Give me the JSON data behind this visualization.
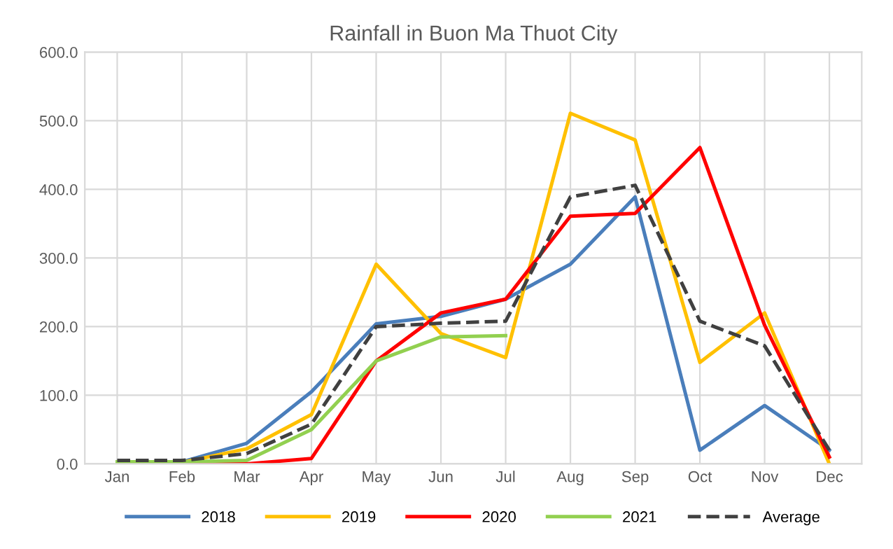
{
  "chart_data": {
    "type": "line",
    "title": "Rainfall in Buon Ma Thuot City",
    "categories": [
      "Jan",
      "Feb",
      "Mar",
      "Apr",
      "May",
      "Jun",
      "Jul",
      "Aug",
      "Sep",
      "Oct",
      "Nov",
      "Dec"
    ],
    "series": [
      {
        "name": "2018",
        "color": "#4a7ebb",
        "values": [
          3,
          3,
          30,
          105,
          204,
          215,
          240,
          291,
          389,
          20,
          85,
          20
        ]
      },
      {
        "name": "2019",
        "color": "#ffc000",
        "values": [
          2,
          2,
          22,
          72,
          291,
          190,
          155,
          511,
          472,
          148,
          220,
          0
        ]
      },
      {
        "name": "2020",
        "color": "#ff0000",
        "values": [
          0,
          0,
          0,
          8,
          150,
          220,
          240,
          361,
          365,
          461,
          202,
          10
        ]
      },
      {
        "name": "2021",
        "color": "#92d050",
        "values": [
          3,
          3,
          5,
          50,
          150,
          185,
          187,
          null,
          null,
          null,
          null,
          null
        ]
      },
      {
        "name": "Average",
        "color": "#404040",
        "line_style": "dashed",
        "values": [
          5,
          5,
          15,
          58,
          200,
          205,
          208,
          389,
          406,
          208,
          172,
          20
        ]
      }
    ],
    "ylim": [
      0,
      600
    ],
    "yticks": [
      {
        "value": 0,
        "label": "0.0"
      },
      {
        "value": 100,
        "label": "100.0"
      },
      {
        "value": 200,
        "label": "200.0"
      },
      {
        "value": 300,
        "label": "300.0"
      },
      {
        "value": 400,
        "label": "400.0"
      },
      {
        "value": 500,
        "label": "500.0"
      },
      {
        "value": 600,
        "label": "600.0"
      }
    ],
    "grid": true,
    "legend": "bottom",
    "marker": "none",
    "line_style": "solid"
  }
}
